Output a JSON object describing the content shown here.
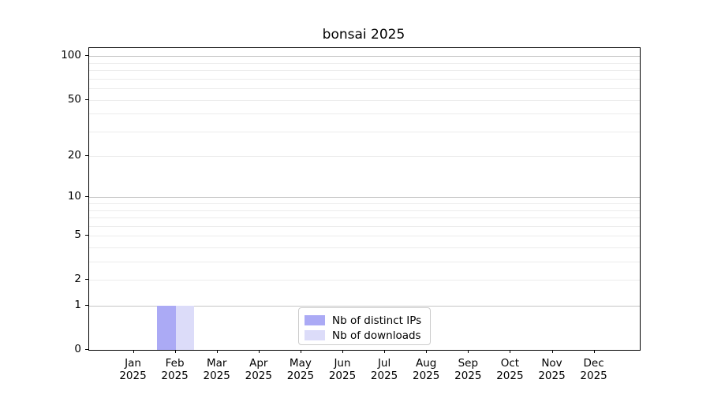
{
  "figure": {
    "background": "#ffffff"
  },
  "chart_data": {
    "type": "bar",
    "title": "bonsai 2025",
    "categories": [
      "Jan 2025",
      "Feb 2025",
      "Mar 2025",
      "Apr 2025",
      "May 2025",
      "Jun 2025",
      "Jul 2025",
      "Aug 2025",
      "Sep 2025",
      "Oct 2025",
      "Nov 2025",
      "Dec 2025"
    ],
    "series": [
      {
        "name": "Nb of distinct IPs",
        "color": "#abaaf5",
        "values": [
          0,
          1,
          0,
          0,
          0,
          0,
          0,
          0,
          0,
          0,
          0,
          0
        ]
      },
      {
        "name": "Nb of downloads",
        "color": "#dcdcf9",
        "values": [
          0,
          1,
          0,
          0,
          0,
          0,
          0,
          0,
          0,
          0,
          0,
          0
        ]
      }
    ],
    "xlabel": "",
    "ylabel": "",
    "yscale": "log1p",
    "ylim": [
      0,
      113
    ],
    "y_tick_values": [
      0,
      1,
      2,
      5,
      10,
      20,
      50,
      100
    ],
    "y_grid_major": [
      1,
      10,
      100
    ],
    "y_grid_minor": [
      2,
      3,
      4,
      5,
      6,
      7,
      8,
      9,
      20,
      30,
      40,
      50,
      60,
      70,
      80,
      90
    ],
    "grid": "horizontal-only",
    "legend_position": "inside-bottom-center"
  },
  "colors": {
    "grid_major": "#c6c6c6",
    "grid_minor": "#ececec",
    "spine": "#000000",
    "text": "#000000",
    "legend_border": "#cccccc"
  }
}
